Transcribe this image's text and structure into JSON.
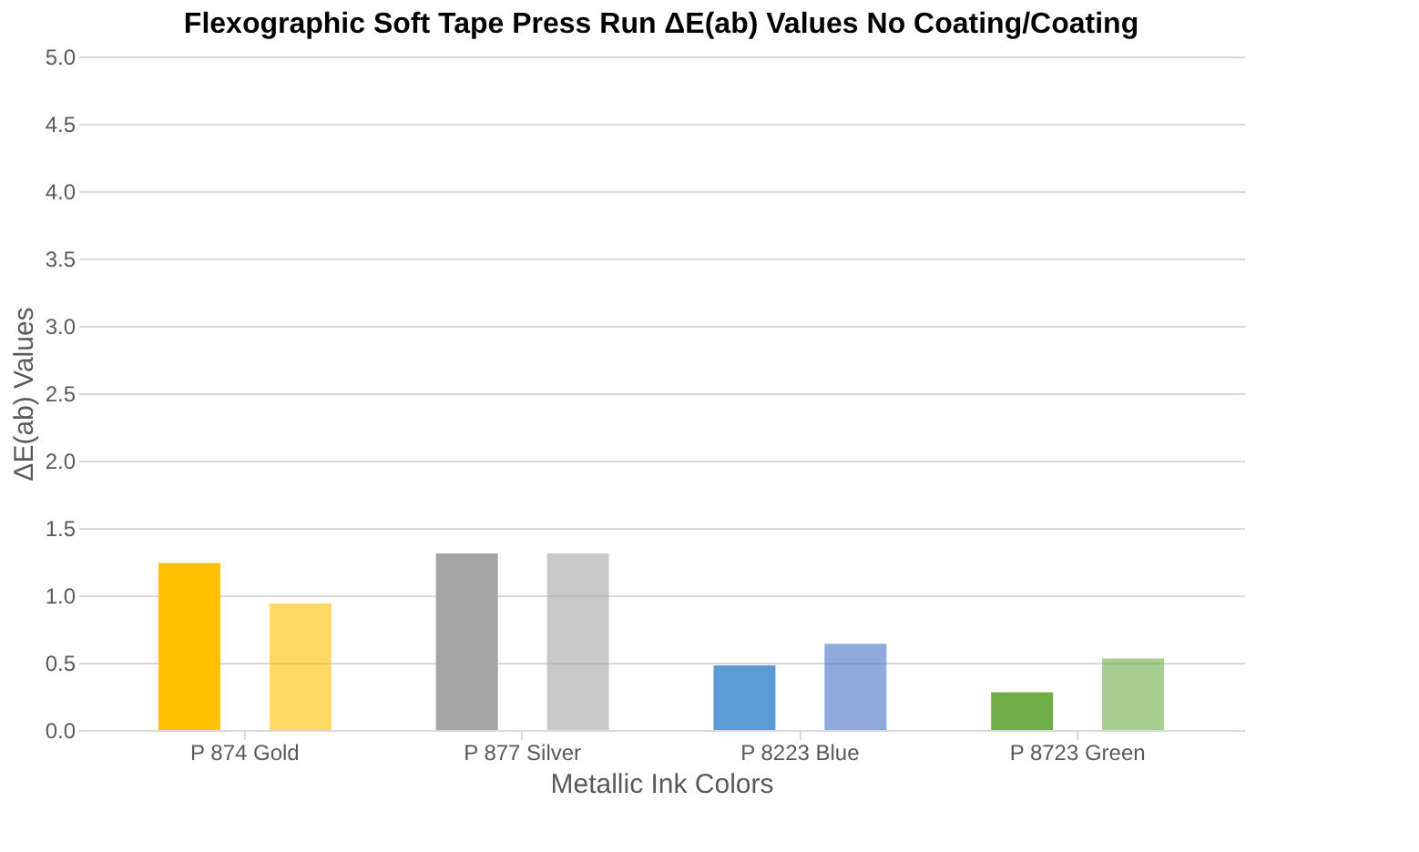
{
  "chart_data": {
    "type": "bar",
    "title": "Flexographic Soft Tape Press Run ΔE(ab) Values No Coating/Coating",
    "xlabel": "Metallic Ink Colors",
    "ylabel": "ΔE(ab) Values",
    "categories": [
      "P 874 Gold",
      "P 877 Silver",
      "P 8223 Blue",
      "P 8723 Green"
    ],
    "series": [
      {
        "colors": [
          "#ffc000",
          "#a5a5a5",
          "#5b9bd5",
          "#70ad47"
        ],
        "values": [
          1.24,
          1.31,
          0.48,
          0.28
        ]
      },
      {
        "colors": [
          "#ffc000",
          "#a5a5a5",
          "#4472c4",
          "#70ad47"
        ],
        "values": [
          0.94,
          1.31,
          0.64,
          0.53
        ]
      }
    ],
    "ylim": [
      0,
      5
    ],
    "yticks": [
      {
        "value": 0,
        "label": "0.0"
      },
      0.5,
      {
        "value": 1,
        "label": "1.0"
      },
      1.5,
      {
        "value": 2,
        "label": "2.0"
      },
      2.5,
      {
        "value": 3,
        "label": "3.0"
      },
      3.5,
      {
        "value": 4,
        "label": "4.0"
      },
      4.5,
      {
        "value": 5,
        "label": "5.0"
      }
    ],
    "grid": "y"
  }
}
